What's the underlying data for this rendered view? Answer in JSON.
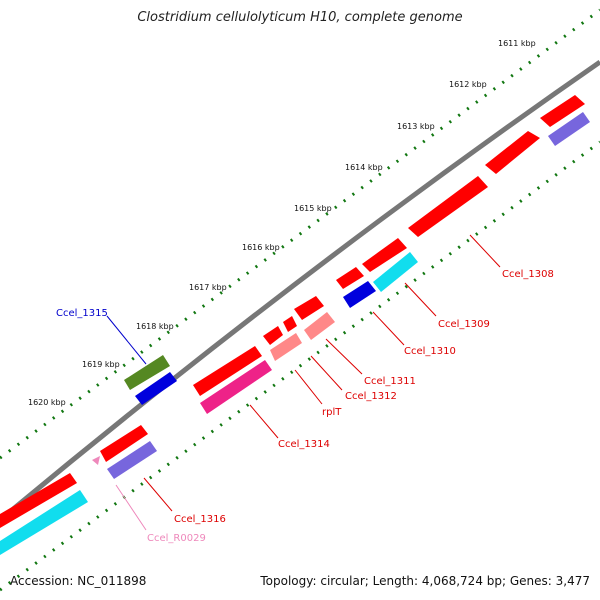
{
  "title": "Clostridium cellulolyticum H10, complete genome",
  "footer": {
    "accession": "Accession: NC_011898",
    "summary": "Topology: circular; Length: 4,068,724 bp; Genes: 3,477"
  },
  "scale": {
    "ticks": [
      "1611 kbp",
      "1612 kbp",
      "1613 kbp",
      "1614 kbp",
      "1615 kbp",
      "1616 kbp",
      "1617 kbp",
      "1618 kbp",
      "1619 kbp",
      "1620 kbp"
    ]
  },
  "genes": [
    {
      "name": "Ccel_1308",
      "color": "#dd0000"
    },
    {
      "name": "Ccel_1309",
      "color": "#dd0000"
    },
    {
      "name": "Ccel_1310",
      "color": "#dd0000"
    },
    {
      "name": "Ccel_1311",
      "color": "#dd0000"
    },
    {
      "name": "Ccel_1312",
      "color": "#dd0000"
    },
    {
      "name": "rplT",
      "color": "#dd0000"
    },
    {
      "name": "Ccel_1314",
      "color": "#dd0000"
    },
    {
      "name": "Ccel_1315",
      "color": "#0000cc"
    },
    {
      "name": "Ccel_1316",
      "color": "#dd0000"
    },
    {
      "name": "Ccel_R0029",
      "color": "#ee88bb"
    }
  ],
  "colors": {
    "backbone": "#777777",
    "cds": "#ff0000",
    "cog_cyan": "#11ddee",
    "cog_blue": "#0000dd",
    "cog_pink": "#ee2288",
    "cog_salmon": "#ff8888",
    "cog_purple": "#7766dd",
    "cog_olive": "#558822",
    "tick": "#117711"
  }
}
